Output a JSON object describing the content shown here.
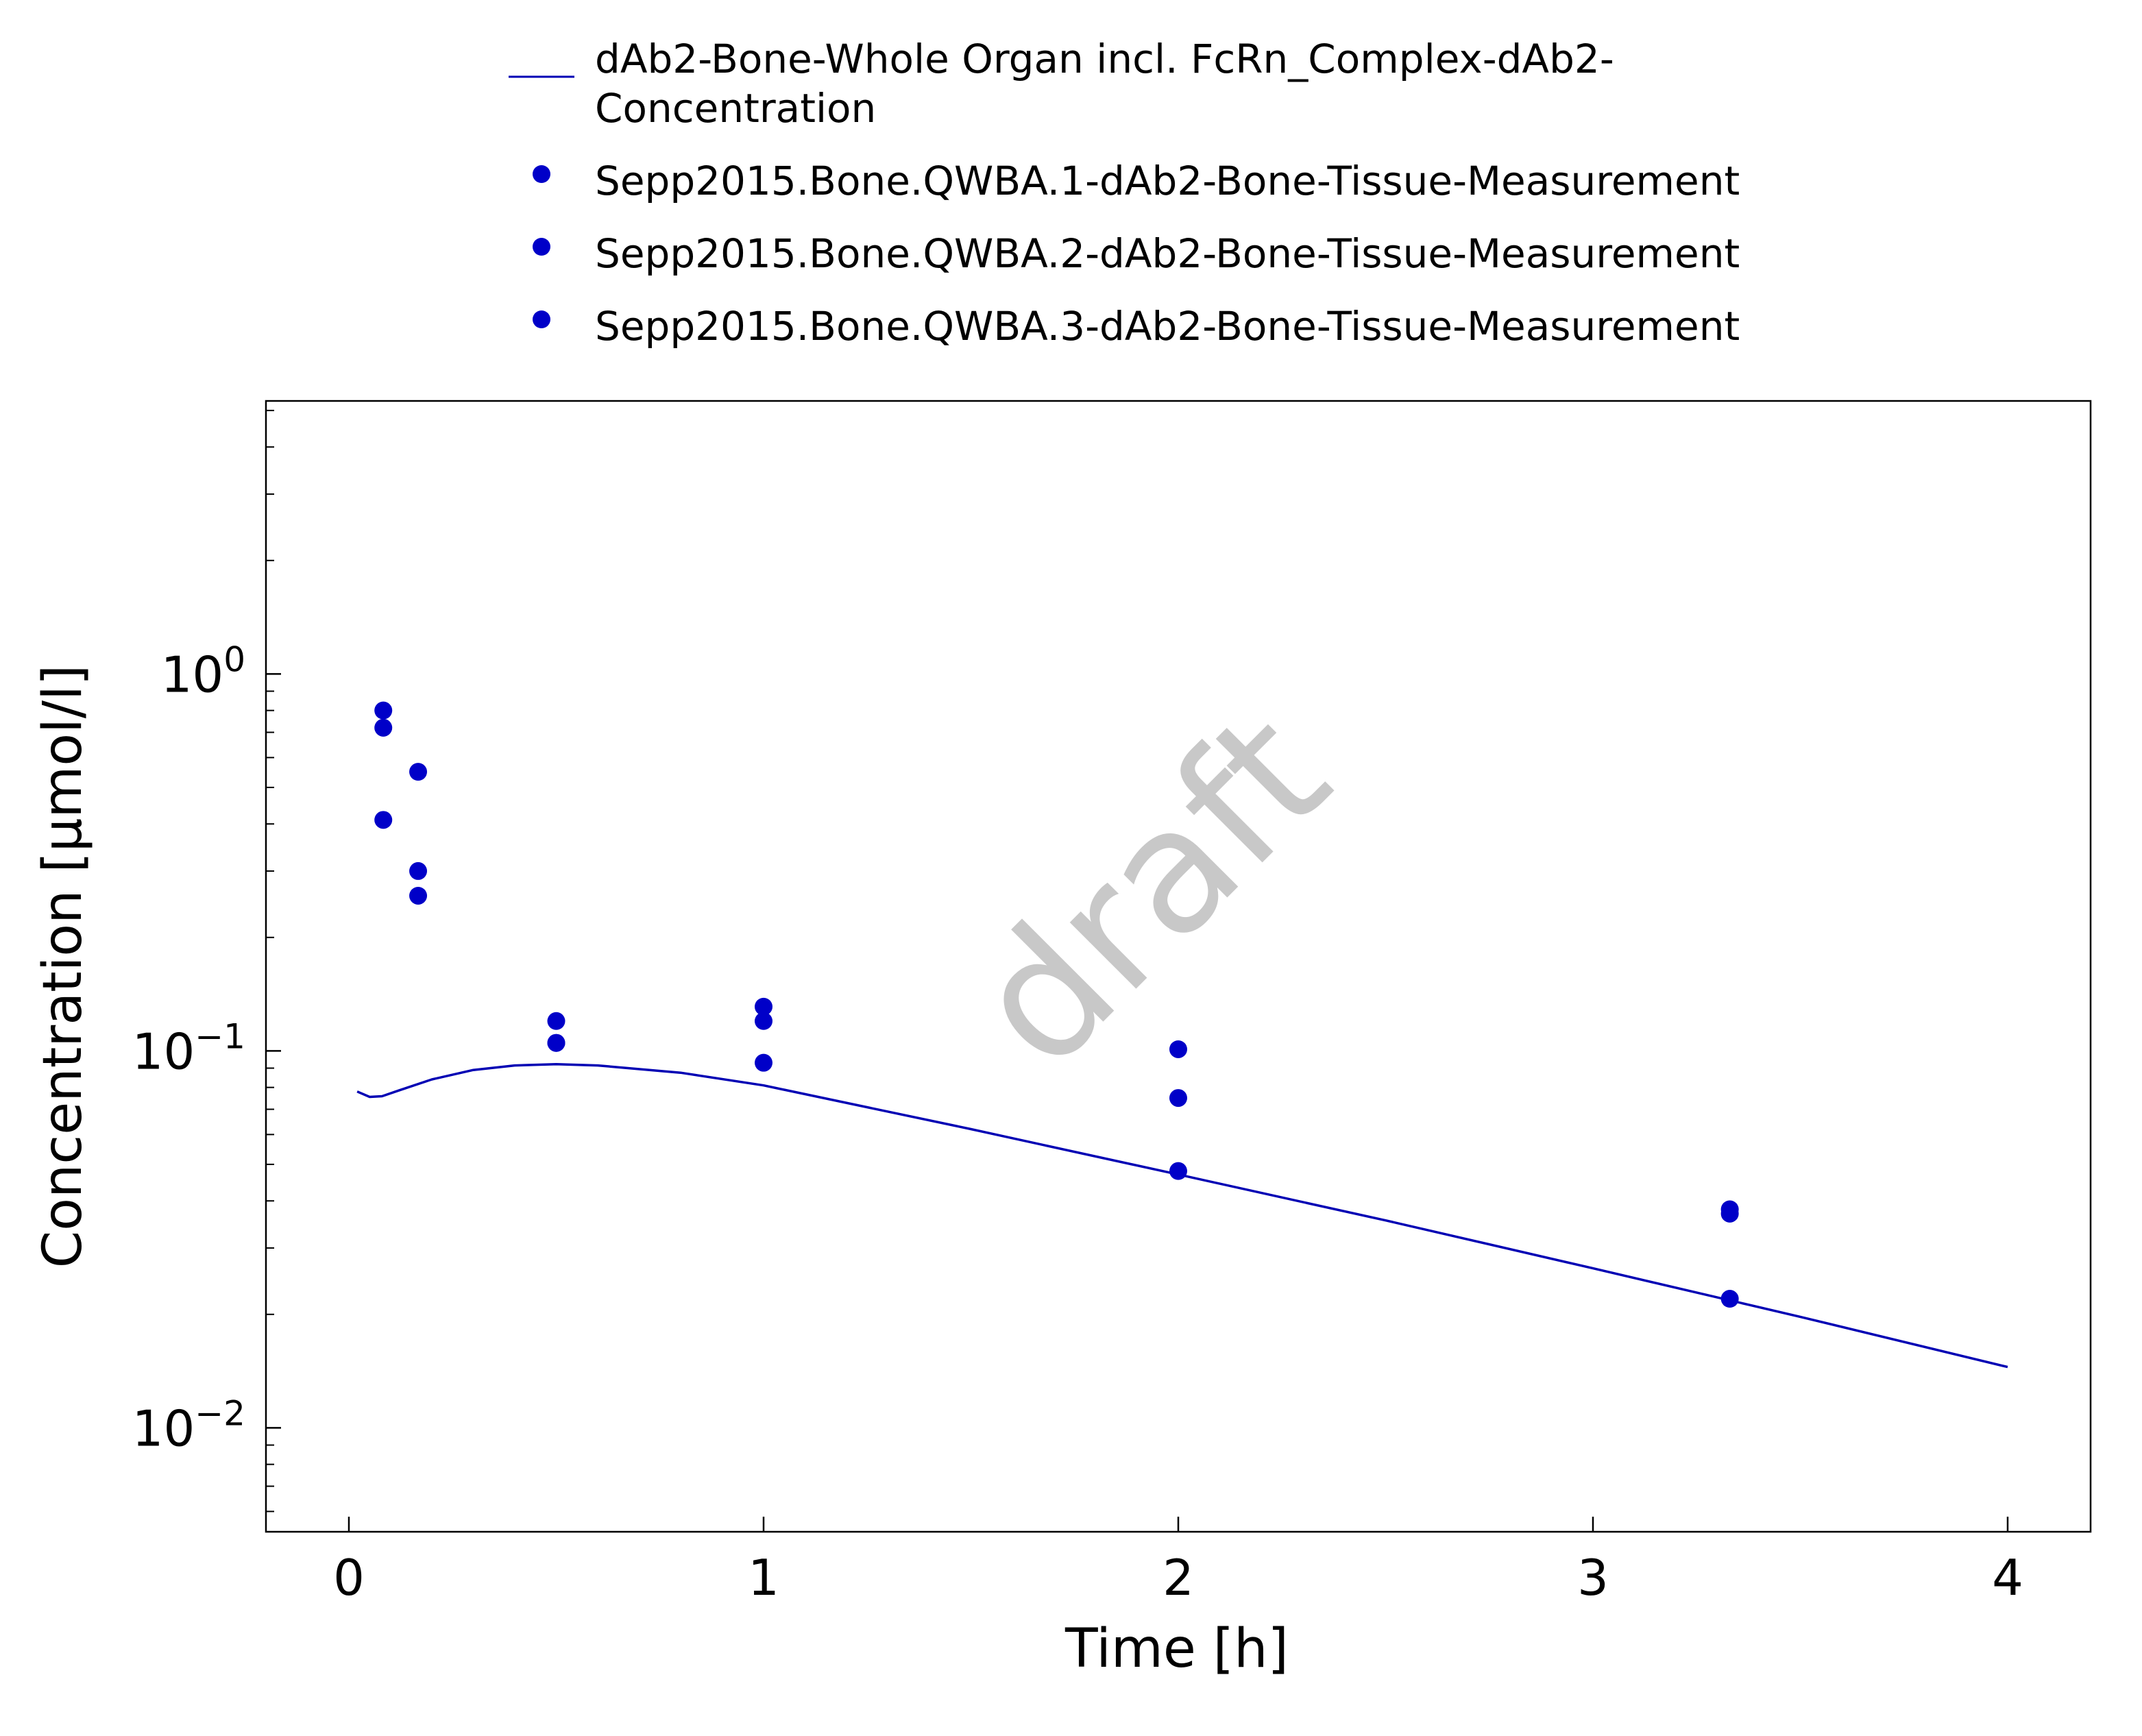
{
  "chart_data": {
    "type": "scatter",
    "xlabel": "Time [h]",
    "ylabel": "Concentration [µmol/l]",
    "watermark": "draft",
    "x_scale": "linear",
    "y_scale": "log",
    "xlim": [
      -0.2,
      4.2
    ],
    "ylim": [
      0.0053,
      5.3
    ],
    "grid": false,
    "legend_position": "top",
    "x_ticks": [
      {
        "value": 0,
        "label": "0"
      },
      {
        "value": 1,
        "label": "1"
      },
      {
        "value": 2,
        "label": "2"
      },
      {
        "value": 3,
        "label": "3"
      },
      {
        "value": 4,
        "label": "4"
      }
    ],
    "y_ticks": [
      {
        "value": 0.01,
        "base": "10",
        "exp": "−2"
      },
      {
        "value": 0.1,
        "base": "10",
        "exp": "−1"
      },
      {
        "value": 1,
        "base": "10",
        "exp": "0"
      }
    ],
    "series": [
      {
        "name": "dAb2-Bone-Whole Organ incl. FcRn_Complex-dAb2-Concentration",
        "legend_lines": [
          "dAb2-Bone-Whole Organ incl. FcRn_Complex-dAb2-",
          "Concentration"
        ],
        "kind": "line",
        "color": "#0000b4",
        "x": [
          0.02,
          0.05,
          0.08,
          0.12,
          0.2,
          0.3,
          0.4,
          0.5,
          0.6,
          0.8,
          1.0,
          1.5,
          2.0,
          2.5,
          3.0,
          3.5,
          4.0
        ],
        "y": [
          0.078,
          0.0755,
          0.0758,
          0.0785,
          0.084,
          0.089,
          0.0915,
          0.0922,
          0.0915,
          0.0875,
          0.081,
          0.062,
          0.047,
          0.0355,
          0.0265,
          0.0197,
          0.0145
        ]
      },
      {
        "name": "Sepp2015.Bone.QWBA.1-dAb2-Bone-Tissue-Measurement",
        "kind": "scatter",
        "color": "#0000c8",
        "x": [
          0.083,
          0.167,
          0.5,
          1.0,
          2.0,
          3.33
        ],
        "y": [
          0.8,
          0.55,
          0.12,
          0.131,
          0.101,
          0.038
        ]
      },
      {
        "name": "Sepp2015.Bone.QWBA.2-dAb2-Bone-Tissue-Measurement",
        "kind": "scatter",
        "color": "#0000c8",
        "x": [
          0.083,
          0.167,
          0.5,
          1.0,
          2.0,
          3.33
        ],
        "y": [
          0.72,
          0.3,
          0.105,
          0.12,
          0.075,
          0.037
        ]
      },
      {
        "name": "Sepp2015.Bone.QWBA.3-dAb2-Bone-Tissue-Measurement",
        "kind": "scatter",
        "color": "#0000c8",
        "x": [
          0.083,
          0.167,
          0.5,
          1.0,
          2.0,
          3.33
        ],
        "y": [
          0.41,
          0.258,
          0.105,
          0.093,
          0.048,
          0.022
        ]
      }
    ]
  }
}
